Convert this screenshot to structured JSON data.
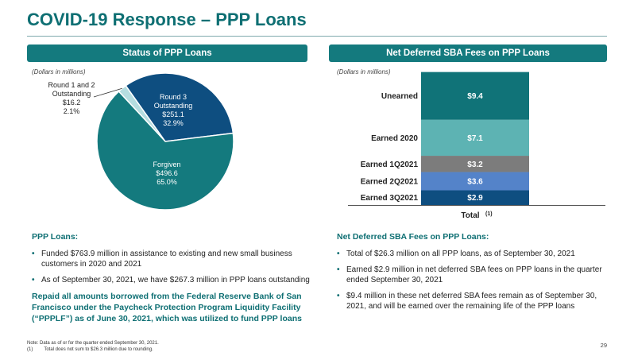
{
  "page": {
    "title": "COVID-19 Response – PPP Loans",
    "page_number": "29"
  },
  "left_panel": {
    "header": "Status of PPP Loans",
    "units_note": "(Dollars in millions)"
  },
  "right_panel": {
    "header": "Net Deferred SBA Fees on PPP Loans",
    "units_note": "(Dollars in millions)"
  },
  "chart_data": [
    {
      "type": "pie",
      "title": "",
      "slices": [
        {
          "label_lines": [
            "Round 1 and 2",
            "Outstanding",
            "$16.2",
            "2.1%"
          ],
          "value": 16.2,
          "percent": 2.1,
          "color": "#b5dde0",
          "label_color": "#222222"
        },
        {
          "label_lines": [
            "Round 3",
            "Outstanding",
            "$251.1",
            "32.9%"
          ],
          "value": 251.1,
          "percent": 32.9,
          "color": "#0e4e80",
          "label_color": "#ffffff"
        },
        {
          "label_lines": [
            "Forgiven",
            "$496.6",
            "65.0%"
          ],
          "value": 496.6,
          "percent": 65.0,
          "color": "#147a7e",
          "label_color": "#ffffff"
        }
      ]
    },
    {
      "type": "bar",
      "stacked": true,
      "categories": [
        "Total"
      ],
      "xlabel": "Total",
      "xlabel_footnote": "(1)",
      "ylim": [
        0,
        26.3
      ],
      "series": [
        {
          "name": "Earned 3Q2021",
          "values": [
            2.9
          ],
          "label": "$2.9",
          "color": "#0e4e80"
        },
        {
          "name": "Earned 2Q2021",
          "values": [
            3.6
          ],
          "label": "$3.6",
          "color": "#5483c9"
        },
        {
          "name": "Earned 1Q2021",
          "values": [
            3.2
          ],
          "label": "$3.2",
          "color": "#7c7c7c"
        },
        {
          "name": "Earned 2020",
          "values": [
            7.1
          ],
          "label": "$7.1",
          "color": "#5db3b3"
        },
        {
          "name": "Unearned",
          "values": [
            9.4
          ],
          "label": "$9.4",
          "color": "#107378"
        }
      ]
    }
  ],
  "left_text": {
    "heading": "PPP Loans:",
    "bullets": [
      "Funded $763.9 million in assistance to existing and new small business customers in 2020 and 2021",
      "As of September 30, 2021, we have $267.3 million in PPP loans outstanding"
    ],
    "repaid": "Repaid all amounts borrowed from the Federal Reserve Bank of San Francisco under the Paycheck Protection Program Liquidity Facility (“PPPLF”) as of June 30, 2021, which was utilized to fund PPP loans"
  },
  "right_text": {
    "heading": "Net Deferred SBA Fees on PPP Loans:",
    "bullets": [
      "Total of $26.3 million on all PPP loans, as of September 30, 2021",
      "Earned $2.9 million in net deferred SBA fees on PPP loans in the quarter ended September 30, 2021",
      "$9.4 million in these net deferred SBA fees remain as of September 30, 2021, and will be earned over the remaining life of the PPP loans"
    ]
  },
  "footnotes": {
    "note": "Note: Data as of or for the quarter ended September 30, 2021.",
    "fn1_marker": "(1)",
    "fn1_text": "Total does not sum to $26.3 million due to rounding."
  }
}
